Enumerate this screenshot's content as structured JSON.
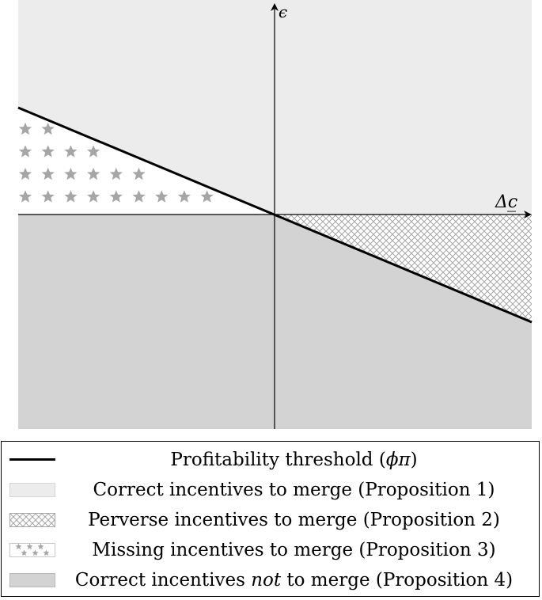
{
  "axes": {
    "x_label": "Δc̲",
    "y_label": "ϵ"
  },
  "colors": {
    "correct_merge": "#ececec",
    "correct_not_merge": "#d3d3d3",
    "threshold_line": "#000000",
    "pattern_gray": "#a6a6a6"
  },
  "legend": {
    "threshold": {
      "prefix": "Profitability threshold (",
      "symbol": "ϕπ",
      "suffix": ")"
    },
    "correct": "Correct incentives to merge (Proposition 1)",
    "perverse": "Perverse incentives to merge (Proposition 2)",
    "missing": "Missing incentives to merge (Proposition 3)",
    "not_merge": {
      "prefix": "Correct incentives ",
      "em": "not",
      "suffix": " to merge (Proposition 4)"
    }
  }
}
